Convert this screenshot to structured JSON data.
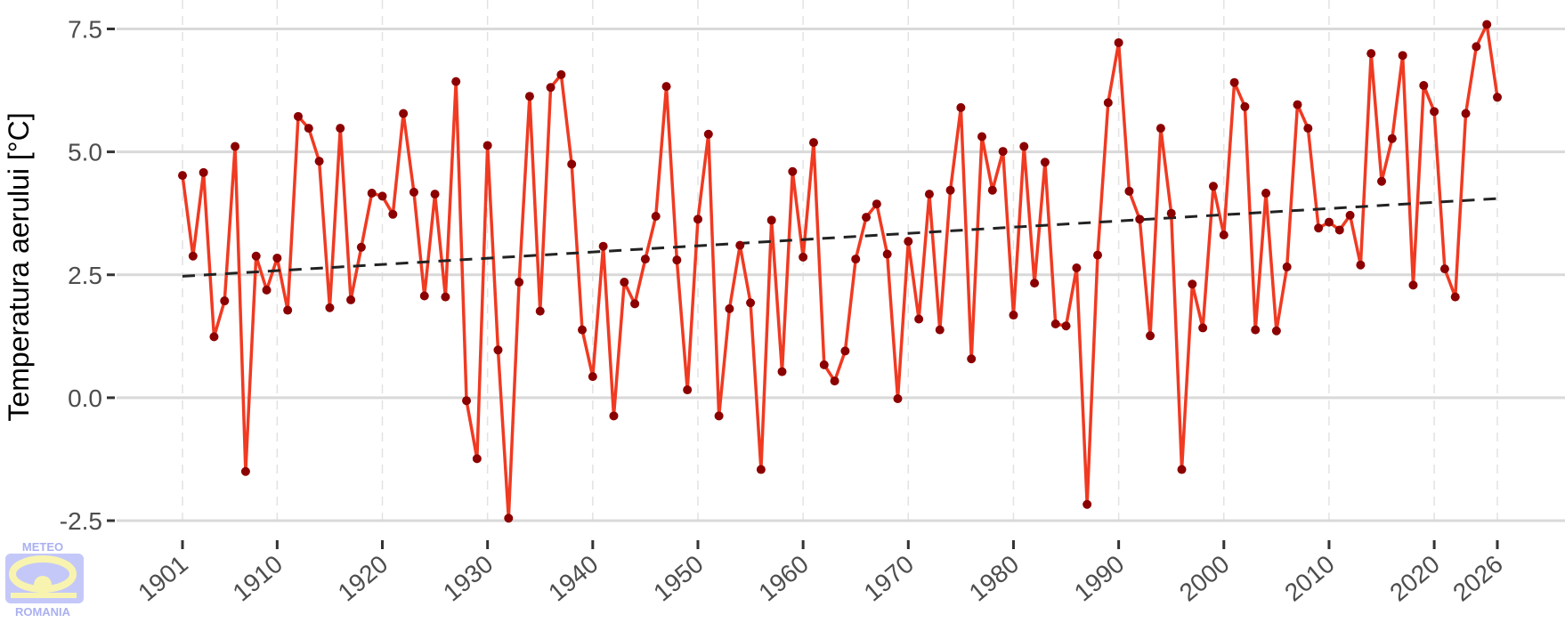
{
  "chart_data": {
    "type": "line",
    "title": "",
    "xlabel": "",
    "ylabel": "Temperatura aerului [°C]",
    "xlim": [
      1901,
      2026
    ],
    "ylim": [
      -2.5,
      7.5
    ],
    "x_ticks": [
      "1901",
      "1910",
      "1920",
      "1930",
      "1940",
      "1950",
      "1960",
      "1970",
      "1980",
      "1990",
      "2000",
      "2010",
      "2020",
      "2026"
    ],
    "y_ticks": [
      "-2.5",
      "0.0",
      "2.5",
      "5.0",
      "7.5"
    ],
    "grid": true,
    "series": [
      {
        "color": "#f03a22",
        "marker_color": "#8b0000",
        "x_start": 1901,
        "values": [
          4.52,
          2.88,
          4.58,
          1.24,
          1.97,
          5.11,
          -1.5,
          2.88,
          2.19,
          2.84,
          1.78,
          5.72,
          5.48,
          4.81,
          1.83,
          5.48,
          1.99,
          3.06,
          4.16,
          4.1,
          3.73,
          5.78,
          4.18,
          2.07,
          4.14,
          2.05,
          6.43,
          -0.06,
          -1.24,
          5.13,
          0.97,
          -2.45,
          2.35,
          6.13,
          1.76,
          6.31,
          6.57,
          4.75,
          1.38,
          0.43,
          3.08,
          -0.37,
          2.35,
          1.91,
          2.82,
          3.69,
          6.33,
          2.8,
          0.16,
          3.63,
          5.36,
          -0.37,
          1.81,
          3.1,
          1.93,
          -1.46,
          3.61,
          0.53,
          4.6,
          2.86,
          5.19,
          0.67,
          0.34,
          0.95,
          2.82,
          3.67,
          3.94,
          2.92,
          -0.02,
          3.18,
          1.6,
          4.14,
          1.38,
          4.22,
          5.9,
          0.79,
          5.31,
          4.22,
          5.01,
          1.68,
          5.11,
          2.33,
          4.79,
          1.5,
          1.46,
          2.64,
          -2.17,
          2.9,
          6.0,
          7.22,
          4.2,
          3.63,
          1.26,
          5.48,
          3.75,
          -1.46,
          2.31,
          1.42,
          4.3,
          3.31,
          6.41,
          5.92,
          1.38,
          4.16,
          1.36,
          2.66,
          5.96,
          5.48,
          3.45,
          3.57,
          3.41,
          3.71,
          2.7,
          7.0,
          4.4,
          5.27,
          6.96,
          2.29,
          6.35,
          5.82,
          2.62,
          2.05,
          5.78,
          7.14,
          7.59,
          6.11
        ]
      }
    ],
    "trend": {
      "style": "dashed",
      "color": "#222222",
      "start": [
        1901,
        2.47
      ],
      "end": [
        2026,
        4.05
      ]
    }
  },
  "logo": {
    "top": "METEO",
    "bottom": "ROMANIA"
  }
}
